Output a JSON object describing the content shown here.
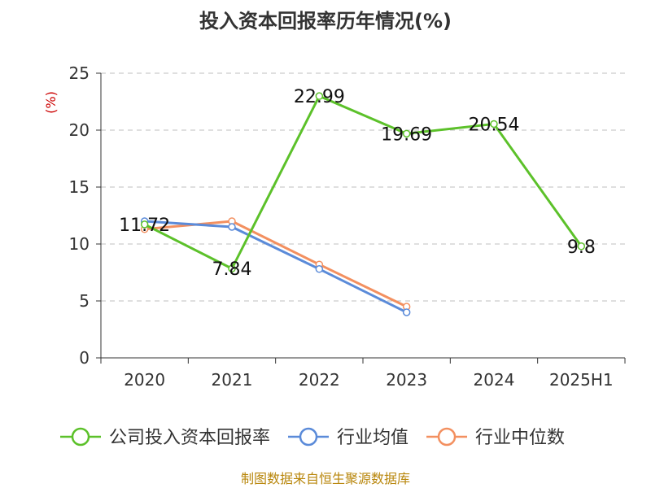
{
  "chart_data": {
    "type": "line",
    "title": "投入资本回报率历年情况(%)",
    "ylabel": "(%)",
    "xlabel": "",
    "categories": [
      "2020",
      "2021",
      "2022",
      "2023",
      "2024",
      "2025H1"
    ],
    "ylim": [
      0,
      25
    ],
    "yticks": [
      0,
      5,
      10,
      15,
      20,
      25
    ],
    "grid": true,
    "legend_position": "bottom",
    "series": [
      {
        "name": "公司投入资本回报率",
        "color": "#5cc12a",
        "values": [
          11.72,
          7.84,
          22.99,
          19.69,
          20.54,
          9.8
        ],
        "labels": [
          "11.72",
          "7.84",
          "22.99",
          "19.69",
          "20.54",
          "9.8"
        ]
      },
      {
        "name": "行业均值",
        "color": "#5b8bd9",
        "values": [
          12.0,
          11.5,
          7.8,
          4.0,
          null,
          null
        ]
      },
      {
        "name": "行业中位数",
        "color": "#f39060",
        "values": [
          11.3,
          12.0,
          8.2,
          4.5,
          null,
          null
        ]
      }
    ]
  },
  "footer": {
    "source": "制图数据来自恒生聚源数据库"
  }
}
